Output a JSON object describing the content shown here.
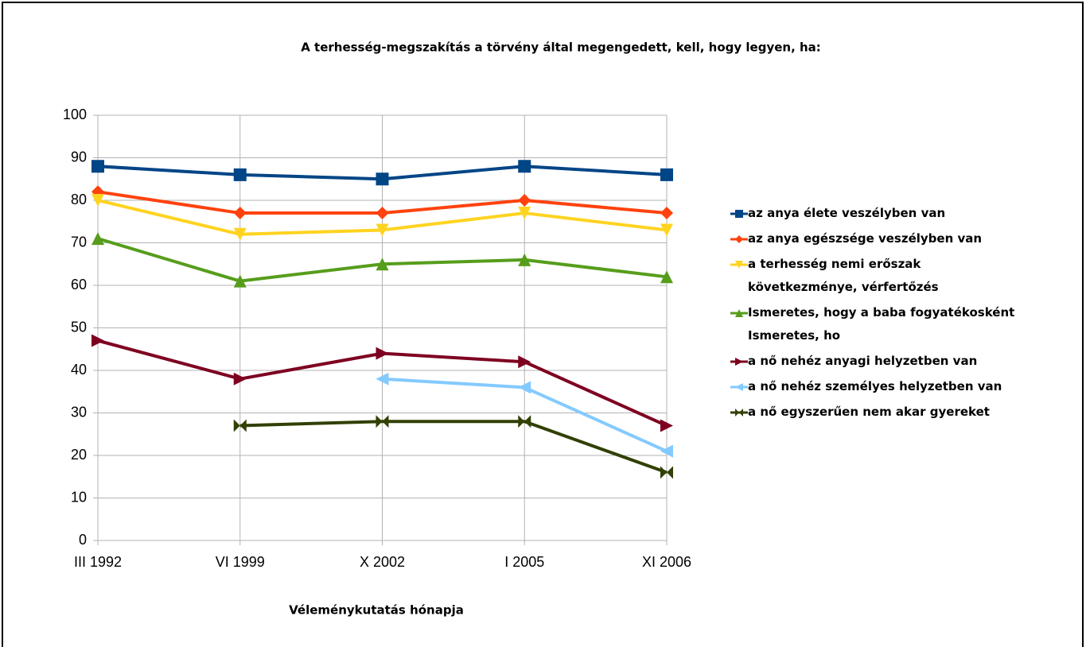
{
  "chart_data": {
    "type": "line",
    "title": "A terhesség-megszakítás a törvény által megengedett, kell, hogy legyen, ha:",
    "x_label": "Véleménykutatás hónapja",
    "categories": [
      "III 1992",
      "VI 1999",
      "X 2002",
      "I 2005",
      "XI 2006"
    ],
    "ylim": [
      0,
      100
    ],
    "yticks": [
      0,
      10,
      20,
      30,
      40,
      50,
      60,
      70,
      80,
      90,
      100
    ],
    "grid": true,
    "legend": "right",
    "series": [
      {
        "name": "az anya élete veszélyben van",
        "color": "#004586",
        "marker": "square",
        "values": [
          88,
          86,
          85,
          88,
          86
        ]
      },
      {
        "name": "az anya egészsége veszélyben van",
        "color": "#ff420e",
        "marker": "diamond",
        "values": [
          82,
          77,
          77,
          80,
          77
        ]
      },
      {
        "name": "a terhesség nemi erőszak\nkövetkezménye, vérfertőzés",
        "color": "#ffd320",
        "marker": "triangle-down",
        "values": [
          80,
          72,
          73,
          77,
          73
        ]
      },
      {
        "name": "Ismeretes, hogy a baba fogyatékosként\nIsmeretes, ho",
        "color": "#579d1c",
        "marker": "triangle-up",
        "values": [
          71,
          61,
          65,
          66,
          62
        ]
      },
      {
        "name": "a nő nehéz anyagi helyzetben van",
        "color": "#7e0021",
        "marker": "triangle-right",
        "values": [
          47,
          38,
          44,
          42,
          27
        ]
      },
      {
        "name": "a nő nehéz személyes helyzetben van",
        "color": "#83caff",
        "marker": "triangle-left",
        "values": [
          null,
          null,
          38,
          36,
          21
        ]
      },
      {
        "name": "a nő egyszerűen nem akar gyereket",
        "color": "#314004",
        "marker": "bowtie",
        "values": [
          null,
          27,
          28,
          28,
          16
        ]
      }
    ]
  }
}
